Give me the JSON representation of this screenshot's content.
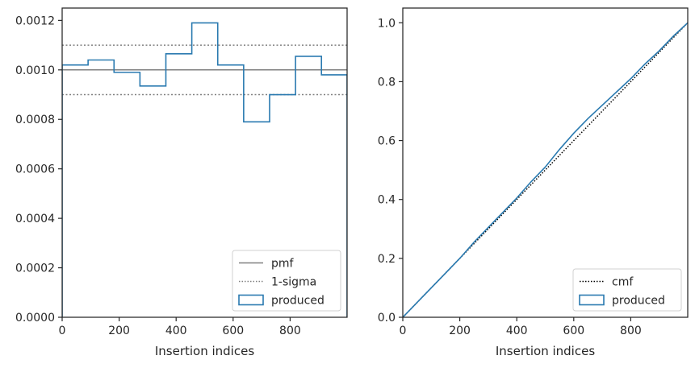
{
  "chart_data": [
    {
      "type": "step",
      "xlabel": "Insertion indices",
      "ylabel": "",
      "xlim": [
        0,
        1000
      ],
      "ylim": [
        0,
        0.00125
      ],
      "xticks": [
        0,
        200,
        400,
        600,
        800
      ],
      "xtick_labels": [
        "0",
        "200",
        "400",
        "600",
        "800"
      ],
      "yticks": [
        0,
        0.0002,
        0.0004,
        0.0006,
        0.0008,
        0.001,
        0.0012
      ],
      "ytick_labels": [
        "0.0000",
        "0.0002",
        "0.0004",
        "0.0006",
        "0.0008",
        "0.0010",
        "0.0012"
      ],
      "grid": false,
      "legend_position": "lower-right",
      "reference_lines": [
        {
          "name": "pmf",
          "y": 0.001,
          "style": "solid",
          "color": "#808080"
        },
        {
          "name": "1-sigma",
          "y": 0.0011,
          "style": "dotted",
          "color": "#808080"
        },
        {
          "name": "1-sigma",
          "y": 0.0009,
          "style": "dotted",
          "color": "#808080"
        }
      ],
      "series": [
        {
          "name": "produced",
          "color": "#2a7ab0",
          "bin_edges": [
            0,
            91,
            182,
            273,
            364,
            455,
            546,
            637,
            728,
            819,
            910,
            1000
          ],
          "values": [
            0.00102,
            0.00104,
            0.00099,
            0.000935,
            0.001065,
            0.00119,
            0.00102,
            0.00079,
            0.0009,
            0.001055,
            0.00098
          ]
        }
      ],
      "legend": [
        {
          "label": "pmf",
          "style": "solid"
        },
        {
          "label": "1-sigma",
          "style": "dotted"
        },
        {
          "label": "produced",
          "style": "patch"
        }
      ]
    },
    {
      "type": "line",
      "xlabel": "Insertion indices",
      "ylabel": "",
      "xlim": [
        0,
        1000
      ],
      "ylim": [
        0,
        1.05
      ],
      "xticks": [
        0,
        200,
        400,
        600,
        800
      ],
      "xtick_labels": [
        "0",
        "200",
        "400",
        "600",
        "800"
      ],
      "yticks": [
        0,
        0.2,
        0.4,
        0.6,
        0.8,
        1.0
      ],
      "ytick_labels": [
        "0.0",
        "0.2",
        "0.4",
        "0.6",
        "0.8",
        "1.0"
      ],
      "grid": false,
      "legend_position": "lower-right",
      "series": [
        {
          "name": "cmf",
          "style": "dotted",
          "color": "#000000",
          "x": [
            0,
            1000
          ],
          "y": [
            0,
            1.0
          ]
        },
        {
          "name": "produced",
          "style": "solid",
          "color": "#2a7ab0",
          "x": [
            0,
            50,
            100,
            150,
            200,
            250,
            300,
            350,
            400,
            450,
            500,
            550,
            600,
            650,
            700,
            750,
            800,
            850,
            900,
            950,
            1000
          ],
          "y": [
            0,
            0.05,
            0.1,
            0.15,
            0.2,
            0.255,
            0.305,
            0.355,
            0.405,
            0.46,
            0.51,
            0.57,
            0.625,
            0.675,
            0.72,
            0.765,
            0.81,
            0.86,
            0.905,
            0.955,
            1.0
          ]
        }
      ],
      "legend": [
        {
          "label": "cmf",
          "style": "dotted"
        },
        {
          "label": "produced",
          "style": "patch"
        }
      ]
    }
  ]
}
